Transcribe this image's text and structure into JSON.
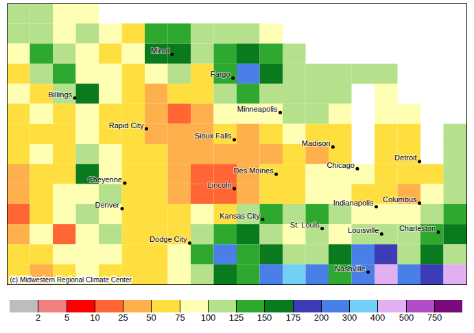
{
  "chart_data": {
    "type": "heatmap",
    "caption": "(c) Midwestern Regional Climate Center",
    "tick_labels": false,
    "xlim": [
      -113.5,
      -79.5
    ],
    "ylim": [
      35.5,
      51.0
    ],
    "cells": {
      "lon_start": -113.5,
      "lon_step": 1.7,
      "lat_start": 51.0,
      "lat_step": 1.1071,
      "values": [
        [
          100,
          110,
          85,
          85,
          null,
          null,
          null,
          null,
          null,
          null,
          null,
          null,
          null,
          null,
          null,
          null,
          null,
          null,
          null,
          null
        ],
        [
          110,
          100,
          85,
          110,
          85,
          60,
          135,
          135,
          110,
          100,
          110,
          85,
          null,
          null,
          null,
          null,
          null,
          null,
          null,
          null
        ],
        [
          85,
          135,
          110,
          85,
          60,
          85,
          150,
          160,
          110,
          135,
          160,
          135,
          110,
          null,
          null,
          null,
          null,
          null,
          null,
          null
        ],
        [
          60,
          110,
          135,
          85,
          85,
          60,
          85,
          110,
          60,
          135,
          250,
          160,
          110,
          100,
          110,
          110,
          100,
          null,
          null,
          null
        ],
        [
          85,
          60,
          110,
          160,
          85,
          60,
          40,
          60,
          60,
          110,
          135,
          110,
          100,
          110,
          110,
          null,
          85,
          null,
          null,
          null
        ],
        [
          60,
          85,
          60,
          85,
          60,
          60,
          40,
          20,
          40,
          85,
          85,
          85,
          100,
          110,
          85,
          null,
          85,
          85,
          null,
          null
        ],
        [
          60,
          60,
          60,
          85,
          60,
          60,
          40,
          40,
          40,
          60,
          40,
          60,
          85,
          60,
          60,
          null,
          60,
          60,
          null,
          110
        ],
        [
          60,
          85,
          60,
          110,
          85,
          60,
          60,
          40,
          40,
          40,
          40,
          40,
          60,
          40,
          60,
          null,
          60,
          60,
          null,
          110
        ],
        [
          40,
          60,
          60,
          160,
          85,
          60,
          60,
          40,
          20,
          20,
          40,
          60,
          60,
          85,
          85,
          85,
          60,
          60,
          60,
          110
        ],
        [
          40,
          60,
          85,
          85,
          110,
          60,
          60,
          40,
          20,
          20,
          40,
          60,
          60,
          85,
          85,
          60,
          60,
          40,
          85,
          110
        ],
        [
          20,
          60,
          85,
          110,
          85,
          60,
          60,
          60,
          85,
          60,
          110,
          135,
          110,
          135,
          110,
          85,
          85,
          85,
          110,
          135
        ],
        [
          40,
          85,
          20,
          85,
          110,
          60,
          60,
          60,
          110,
          135,
          150,
          110,
          85,
          110,
          85,
          110,
          110,
          110,
          135,
          160
        ],
        [
          60,
          60,
          85,
          85,
          85,
          60,
          60,
          85,
          135,
          250,
          135,
          160,
          100,
          110,
          160,
          250,
          185,
          110,
          160,
          110
        ],
        [
          60,
          40,
          60,
          85,
          60,
          60,
          60,
          85,
          110,
          160,
          135,
          250,
          350,
          250,
          135,
          250,
          450,
          250,
          185,
          450
        ]
      ]
    },
    "color_scale": {
      "thresholds": [
        2,
        5,
        10,
        25,
        50,
        75,
        100,
        125,
        150,
        175,
        200,
        300,
        400,
        500,
        750
      ],
      "colors": [
        "#bdbdbd",
        "#f08080",
        "#ff0000",
        "#ff6633",
        "#fdb04b",
        "#ffdf40",
        "#ffffb3",
        "#b5e08c",
        "#2ea82e",
        "#0a7a1e",
        "#3c3cb4",
        "#4a7fe8",
        "#74cff5",
        "#e0b0f0",
        "#b44cc8",
        "#7a0a7a"
      ]
    },
    "cities": [
      {
        "name": "Billings",
        "lon": -108.5,
        "lat": 45.8
      },
      {
        "name": "Minot",
        "lon": -101.3,
        "lat": 48.2
      },
      {
        "name": "Fargo",
        "lon": -96.8,
        "lat": 46.9
      },
      {
        "name": "Minneapolis",
        "lon": -93.3,
        "lat": 45.0
      },
      {
        "name": "Rapid City",
        "lon": -103.2,
        "lat": 44.1
      },
      {
        "name": "Sioux Falls",
        "lon": -96.7,
        "lat": 43.5
      },
      {
        "name": "Madison",
        "lon": -89.4,
        "lat": 43.1
      },
      {
        "name": "Detroit",
        "lon": -83.0,
        "lat": 42.3
      },
      {
        "name": "Chicago",
        "lon": -87.6,
        "lat": 41.9
      },
      {
        "name": "Des Moines",
        "lon": -93.6,
        "lat": 41.6
      },
      {
        "name": "Cheyenne",
        "lon": -104.8,
        "lat": 41.1
      },
      {
        "name": "Lincoln",
        "lon": -96.7,
        "lat": 40.8
      },
      {
        "name": "Denver",
        "lon": -105.0,
        "lat": 39.7
      },
      {
        "name": "Indianapolis",
        "lon": -86.2,
        "lat": 39.8
      },
      {
        "name": "Columbus",
        "lon": -83.0,
        "lat": 40.0
      },
      {
        "name": "Kansas City",
        "lon": -94.6,
        "lat": 39.1
      },
      {
        "name": "St. Louis",
        "lon": -90.2,
        "lat": 38.6
      },
      {
        "name": "Dodge City",
        "lon": -100.0,
        "lat": 37.8
      },
      {
        "name": "Louisville",
        "lon": -85.8,
        "lat": 38.3
      },
      {
        "name": "Charleston",
        "lon": -81.6,
        "lat": 38.4
      },
      {
        "name": "Nashville",
        "lon": -86.8,
        "lat": 36.2
      }
    ]
  }
}
